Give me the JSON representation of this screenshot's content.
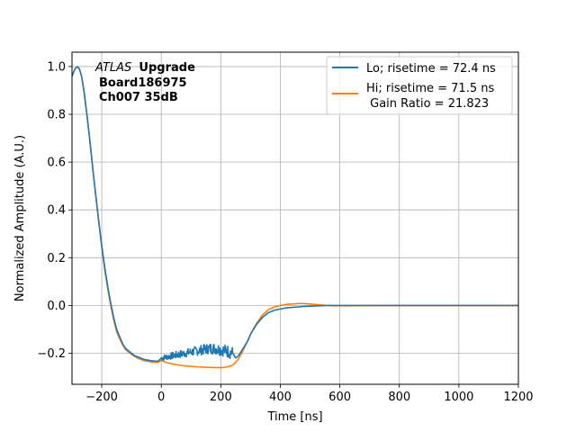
{
  "chart_data": {
    "type": "line",
    "xlabel": "Time [ns]",
    "ylabel": "Normalized Amplitude (A.U.)",
    "xlim": [
      -300,
      1200
    ],
    "ylim": [
      -0.33,
      1.06
    ],
    "xticks": [
      -200,
      0,
      200,
      400,
      600,
      800,
      1000,
      1200
    ],
    "xtick_labels": [
      "−200",
      "0",
      "200",
      "400",
      "600",
      "800",
      "1000",
      "1200"
    ],
    "yticks": [
      -0.2,
      0.0,
      0.2,
      0.4,
      0.6,
      0.8,
      1.0
    ],
    "ytick_labels": [
      "−0.2",
      "0.0",
      "0.2",
      "0.4",
      "0.6",
      "0.8",
      "1.0"
    ],
    "grid": true,
    "legend_position": "top-right",
    "annotation": {
      "italic": "ATLAS",
      "bold": "Upgrade",
      "line2": "Board186975",
      "line3": "Ch007 35dB"
    },
    "series": [
      {
        "name": "Lo; risetime = 72.4 ns",
        "color": "#1f77b4",
        "noisy_segment": {
          "x_start": 0,
          "x_end": 240,
          "amplitude": 0.02
        },
        "x": [
          -300,
          -290,
          -282,
          -275,
          -268,
          -260,
          -250,
          -240,
          -230,
          -220,
          -210,
          -200,
          -190,
          -180,
          -170,
          -160,
          -150,
          -140,
          -130,
          -120,
          -110,
          -100,
          -90,
          -80,
          -70,
          -60,
          -50,
          -40,
          -30,
          -20,
          -10,
          0,
          20,
          40,
          60,
          80,
          100,
          120,
          140,
          160,
          180,
          200,
          220,
          240,
          250,
          260,
          270,
          280,
          290,
          300,
          320,
          340,
          360,
          380,
          400,
          420,
          440,
          460,
          480,
          500,
          520,
          540,
          560,
          580,
          600,
          650,
          700,
          800,
          900,
          1000,
          1100,
          1200
        ],
        "y": [
          0.96,
          0.99,
          1.0,
          0.99,
          0.96,
          0.9,
          0.8,
          0.69,
          0.57,
          0.46,
          0.35,
          0.25,
          0.16,
          0.08,
          0.01,
          -0.05,
          -0.1,
          -0.13,
          -0.16,
          -0.18,
          -0.19,
          -0.2,
          -0.21,
          -0.215,
          -0.22,
          -0.225,
          -0.228,
          -0.23,
          -0.232,
          -0.233,
          -0.233,
          -0.22,
          -0.215,
          -0.21,
          -0.205,
          -0.2,
          -0.195,
          -0.19,
          -0.185,
          -0.18,
          -0.18,
          -0.185,
          -0.19,
          -0.2,
          -0.22,
          -0.21,
          -0.19,
          -0.17,
          -0.15,
          -0.12,
          -0.08,
          -0.05,
          -0.03,
          -0.02,
          -0.015,
          -0.01,
          -0.008,
          -0.006,
          -0.004,
          -0.003,
          -0.002,
          -0.001,
          0.0,
          0.0,
          0.0,
          0.0,
          0.0,
          0.0,
          0.0,
          0.0,
          0.0,
          0.0
        ]
      },
      {
        "name": "Hi; risetime = 71.5 ns",
        "name_line2": " Gain Ratio = 21.823",
        "color": "#ff7f0e",
        "x": [
          -300,
          -290,
          -282,
          -275,
          -268,
          -260,
          -250,
          -240,
          -230,
          -220,
          -210,
          -200,
          -190,
          -180,
          -170,
          -160,
          -150,
          -140,
          -130,
          -120,
          -110,
          -100,
          -90,
          -80,
          -70,
          -60,
          -50,
          -40,
          -30,
          -20,
          -10,
          0,
          20,
          40,
          60,
          80,
          100,
          120,
          140,
          160,
          180,
          200,
          220,
          240,
          250,
          260,
          270,
          280,
          290,
          300,
          320,
          340,
          360,
          380,
          400,
          420,
          440,
          460,
          480,
          500,
          520,
          540,
          560,
          580,
          600,
          650,
          700,
          800,
          900,
          1000,
          1100,
          1200
        ],
        "y": [
          0.96,
          0.99,
          1.0,
          0.99,
          0.96,
          0.9,
          0.8,
          0.69,
          0.57,
          0.46,
          0.35,
          0.24,
          0.15,
          0.07,
          0.0,
          -0.06,
          -0.11,
          -0.14,
          -0.165,
          -0.185,
          -0.195,
          -0.205,
          -0.213,
          -0.22,
          -0.225,
          -0.23,
          -0.233,
          -0.235,
          -0.237,
          -0.238,
          -0.238,
          -0.23,
          -0.24,
          -0.245,
          -0.25,
          -0.253,
          -0.255,
          -0.257,
          -0.258,
          -0.259,
          -0.26,
          -0.26,
          -0.258,
          -0.25,
          -0.238,
          -0.222,
          -0.2,
          -0.175,
          -0.148,
          -0.12,
          -0.075,
          -0.04,
          -0.018,
          -0.006,
          0.0,
          0.004,
          0.006,
          0.008,
          0.008,
          0.006,
          0.004,
          0.002,
          0.0,
          -0.001,
          -0.001,
          -0.001,
          0.0,
          0.0,
          0.0,
          0.0,
          0.0,
          0.0
        ]
      }
    ]
  }
}
